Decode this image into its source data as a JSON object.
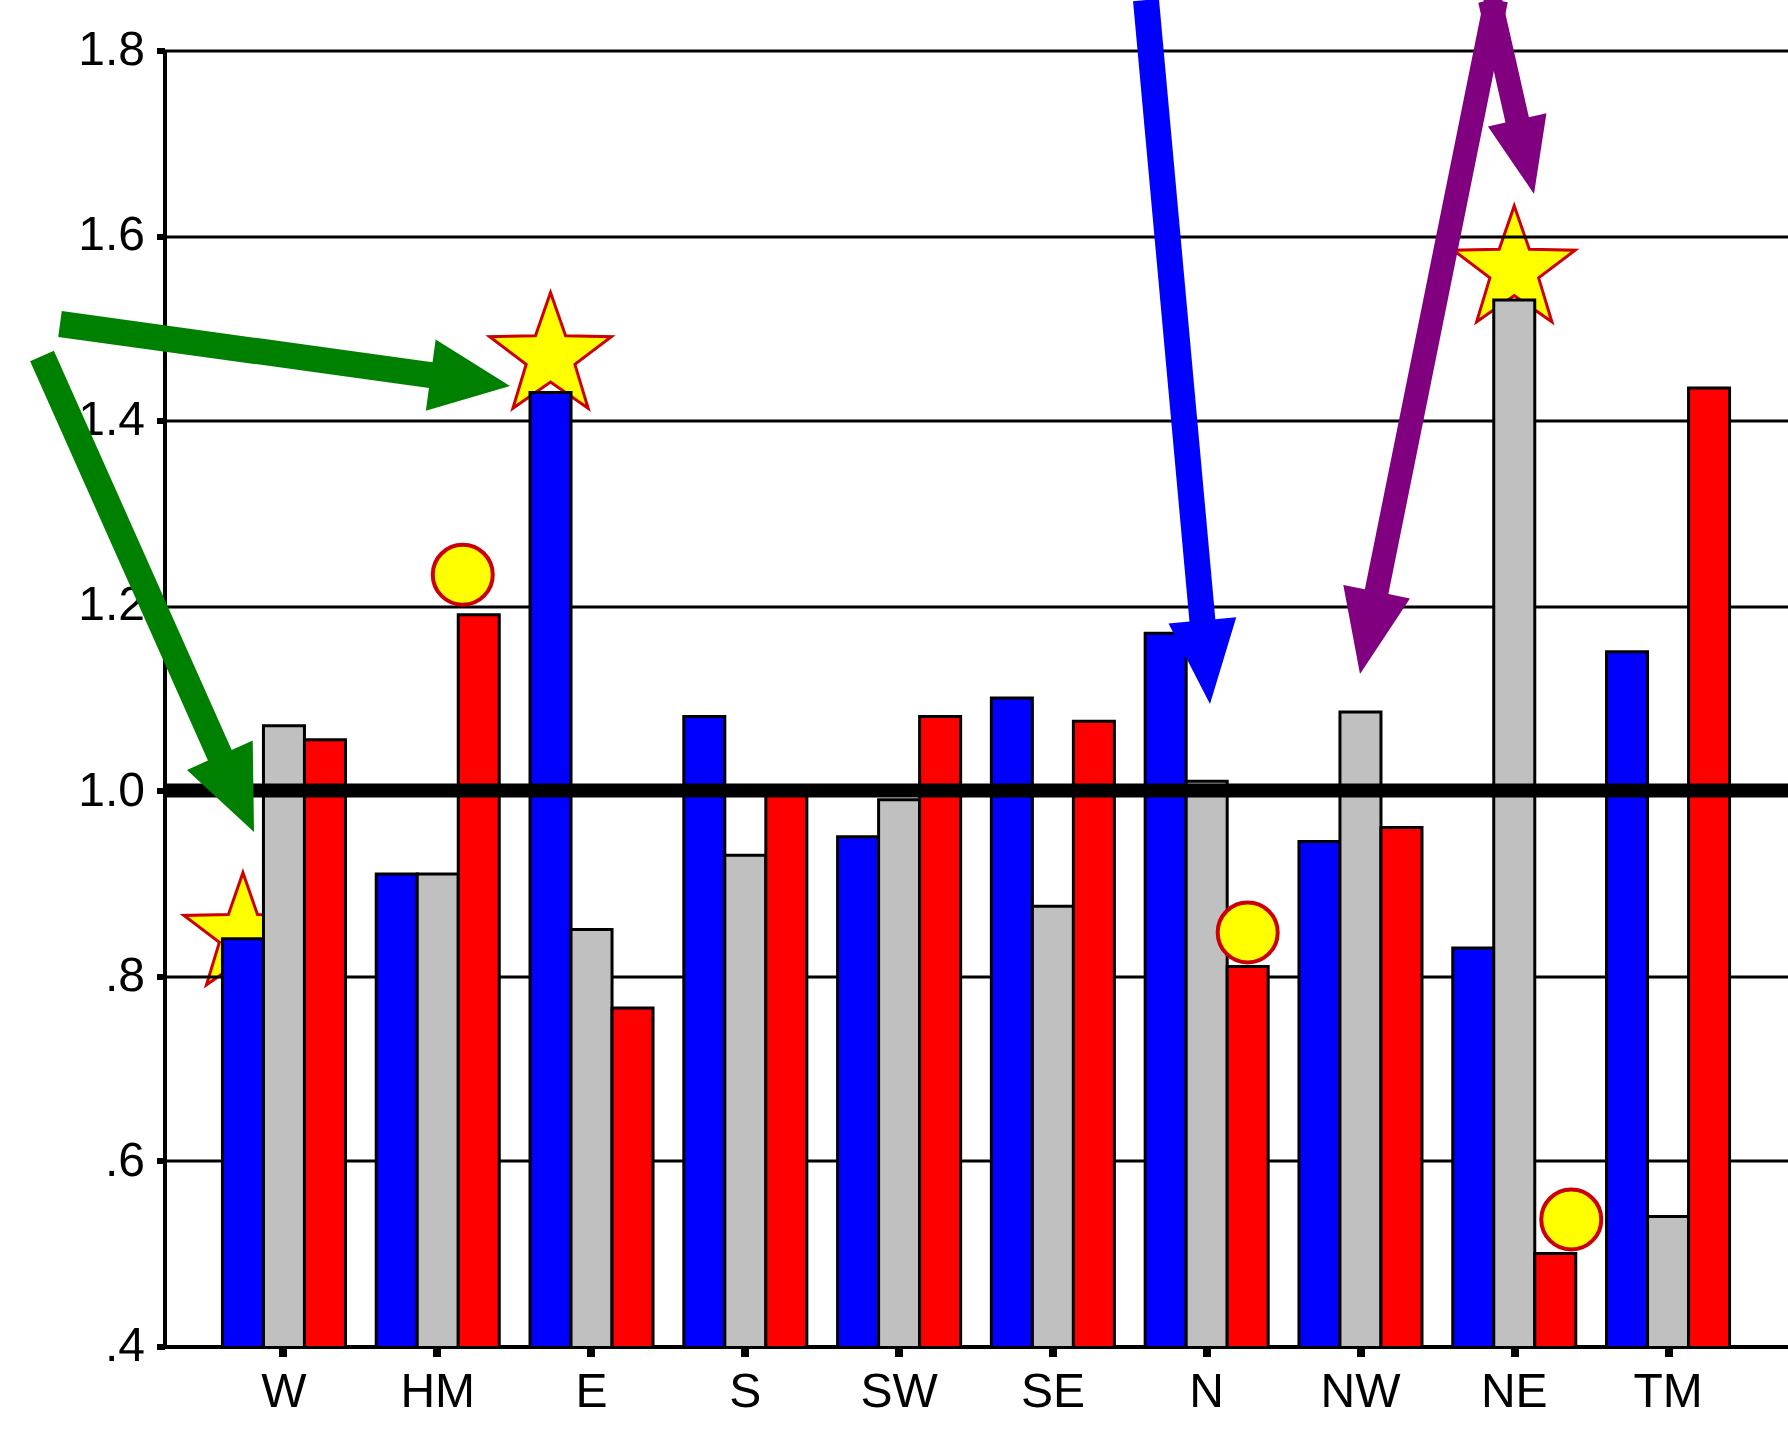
{
  "chart_data": {
    "type": "bar",
    "categories": [
      "W",
      "HM",
      "E",
      "S",
      "SW",
      "SE",
      "N",
      "NW",
      "NE",
      "TM"
    ],
    "series": [
      {
        "color": "#0000ff",
        "values": [
          0.84,
          0.91,
          1.43,
          1.08,
          0.95,
          1.1,
          1.17,
          0.945,
          0.83,
          1.15
        ]
      },
      {
        "color": "#c0c0c0",
        "values": [
          1.07,
          0.91,
          0.85,
          0.93,
          0.99,
          0.875,
          1.01,
          1.085,
          1.53,
          0.54
        ]
      },
      {
        "color": "#ff0000",
        "values": [
          1.055,
          1.19,
          0.765,
          1.0,
          1.08,
          1.075,
          0.81,
          0.96,
          0.5,
          1.435
        ]
      }
    ],
    "ylim": [
      0.4,
      1.8
    ],
    "yticks": [
      {
        "value": 0.4,
        "label": ".4"
      },
      {
        "value": 0.6,
        "label": ".6"
      },
      {
        "value": 0.8,
        "label": ".8"
      },
      {
        "value": 1.0,
        "label": "1.0"
      },
      {
        "value": 1.2,
        "label": "1.2"
      },
      {
        "value": 1.4,
        "label": "1.4"
      },
      {
        "value": 1.6,
        "label": "1.6"
      },
      {
        "value": 1.8,
        "label": "1.8"
      }
    ],
    "grid": "y",
    "ref_lines": [
      {
        "axis": "y",
        "value": 1.0,
        "color": "#000000"
      }
    ]
  }
}
